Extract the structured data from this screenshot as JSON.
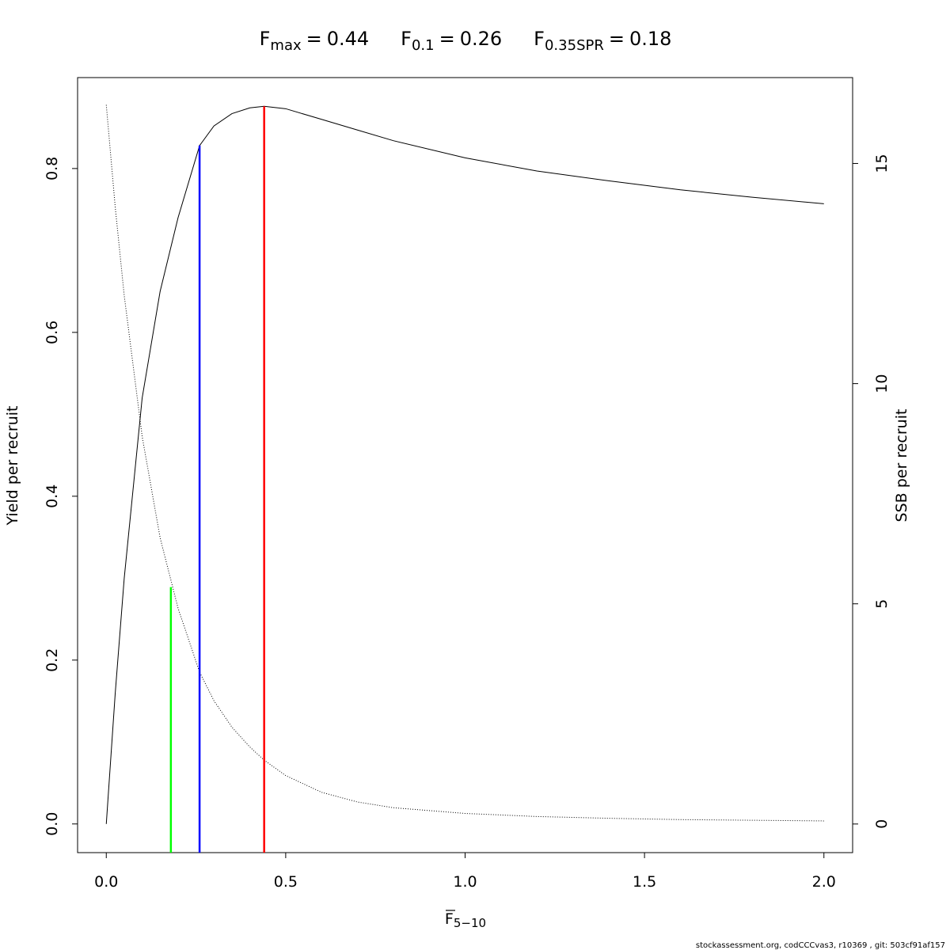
{
  "chart_data": {
    "type": "line",
    "equals": "=",
    "reference_lines": [
      {
        "name_main": "F",
        "name_sub": "max",
        "value": 0.44,
        "top": 0.876,
        "color": "#ff0000",
        "axis": "y"
      },
      {
        "name_main": "F",
        "name_sub": "0.1",
        "value": 0.26,
        "top": 0.828,
        "color": "#0000ff",
        "axis": "y"
      },
      {
        "name_main": "F",
        "name_sub": "0.35SPR",
        "value": 0.18,
        "top": 5.38,
        "color": "#00ff00",
        "axis": "y2"
      }
    ],
    "x_label": {
      "main": "F",
      "sub": "5−10"
    },
    "y_label": "Yield per recruit",
    "y2_label": "SSB per recruit",
    "footer": "stockassessment.org, codCCCvas3, r10369 , git: 503cf91af157",
    "x": [
      0,
      0.025,
      0.05,
      0.1,
      0.15,
      0.2,
      0.26,
      0.3,
      0.35,
      0.4,
      0.44,
      0.5,
      0.6,
      0.7,
      0.8,
      1.0,
      1.2,
      1.4,
      1.6,
      1.8,
      2.0
    ],
    "series": [
      {
        "color": "#000000",
        "axis": "y",
        "dotted": false,
        "values": [
          0,
          0.16,
          0.3,
          0.52,
          0.65,
          0.74,
          0.828,
          0.852,
          0.867,
          0.874,
          0.876,
          0.873,
          0.86,
          0.847,
          0.834,
          0.813,
          0.797,
          0.785,
          0.774,
          0.765,
          0.757
        ]
      },
      {
        "color": "#000000",
        "axis": "y2",
        "dotted": true,
        "values": [
          16.33,
          14.0,
          12.0,
          8.8,
          6.5,
          4.9,
          3.45,
          2.8,
          2.2,
          1.75,
          1.45,
          1.1,
          0.72,
          0.5,
          0.37,
          0.24,
          0.17,
          0.13,
          0.1,
          0.085,
          0.07
        ]
      }
    ],
    "xlim": [
      -0.08,
      2.08
    ],
    "ylim": [
      -0.035,
      0.911
    ],
    "y2lim": [
      -0.65,
      16.95
    ],
    "xticks": [
      {
        "value": 0,
        "label": "0.0"
      },
      0.5,
      {
        "value": 1,
        "label": "1.0"
      },
      1.5,
      {
        "value": 2,
        "label": "2.0"
      }
    ],
    "yticks": [
      {
        "value": 0,
        "label": "0.0"
      },
      0.2,
      0.4,
      0.6,
      0.8
    ],
    "y2ticks": [
      0,
      5,
      10,
      15
    ]
  }
}
